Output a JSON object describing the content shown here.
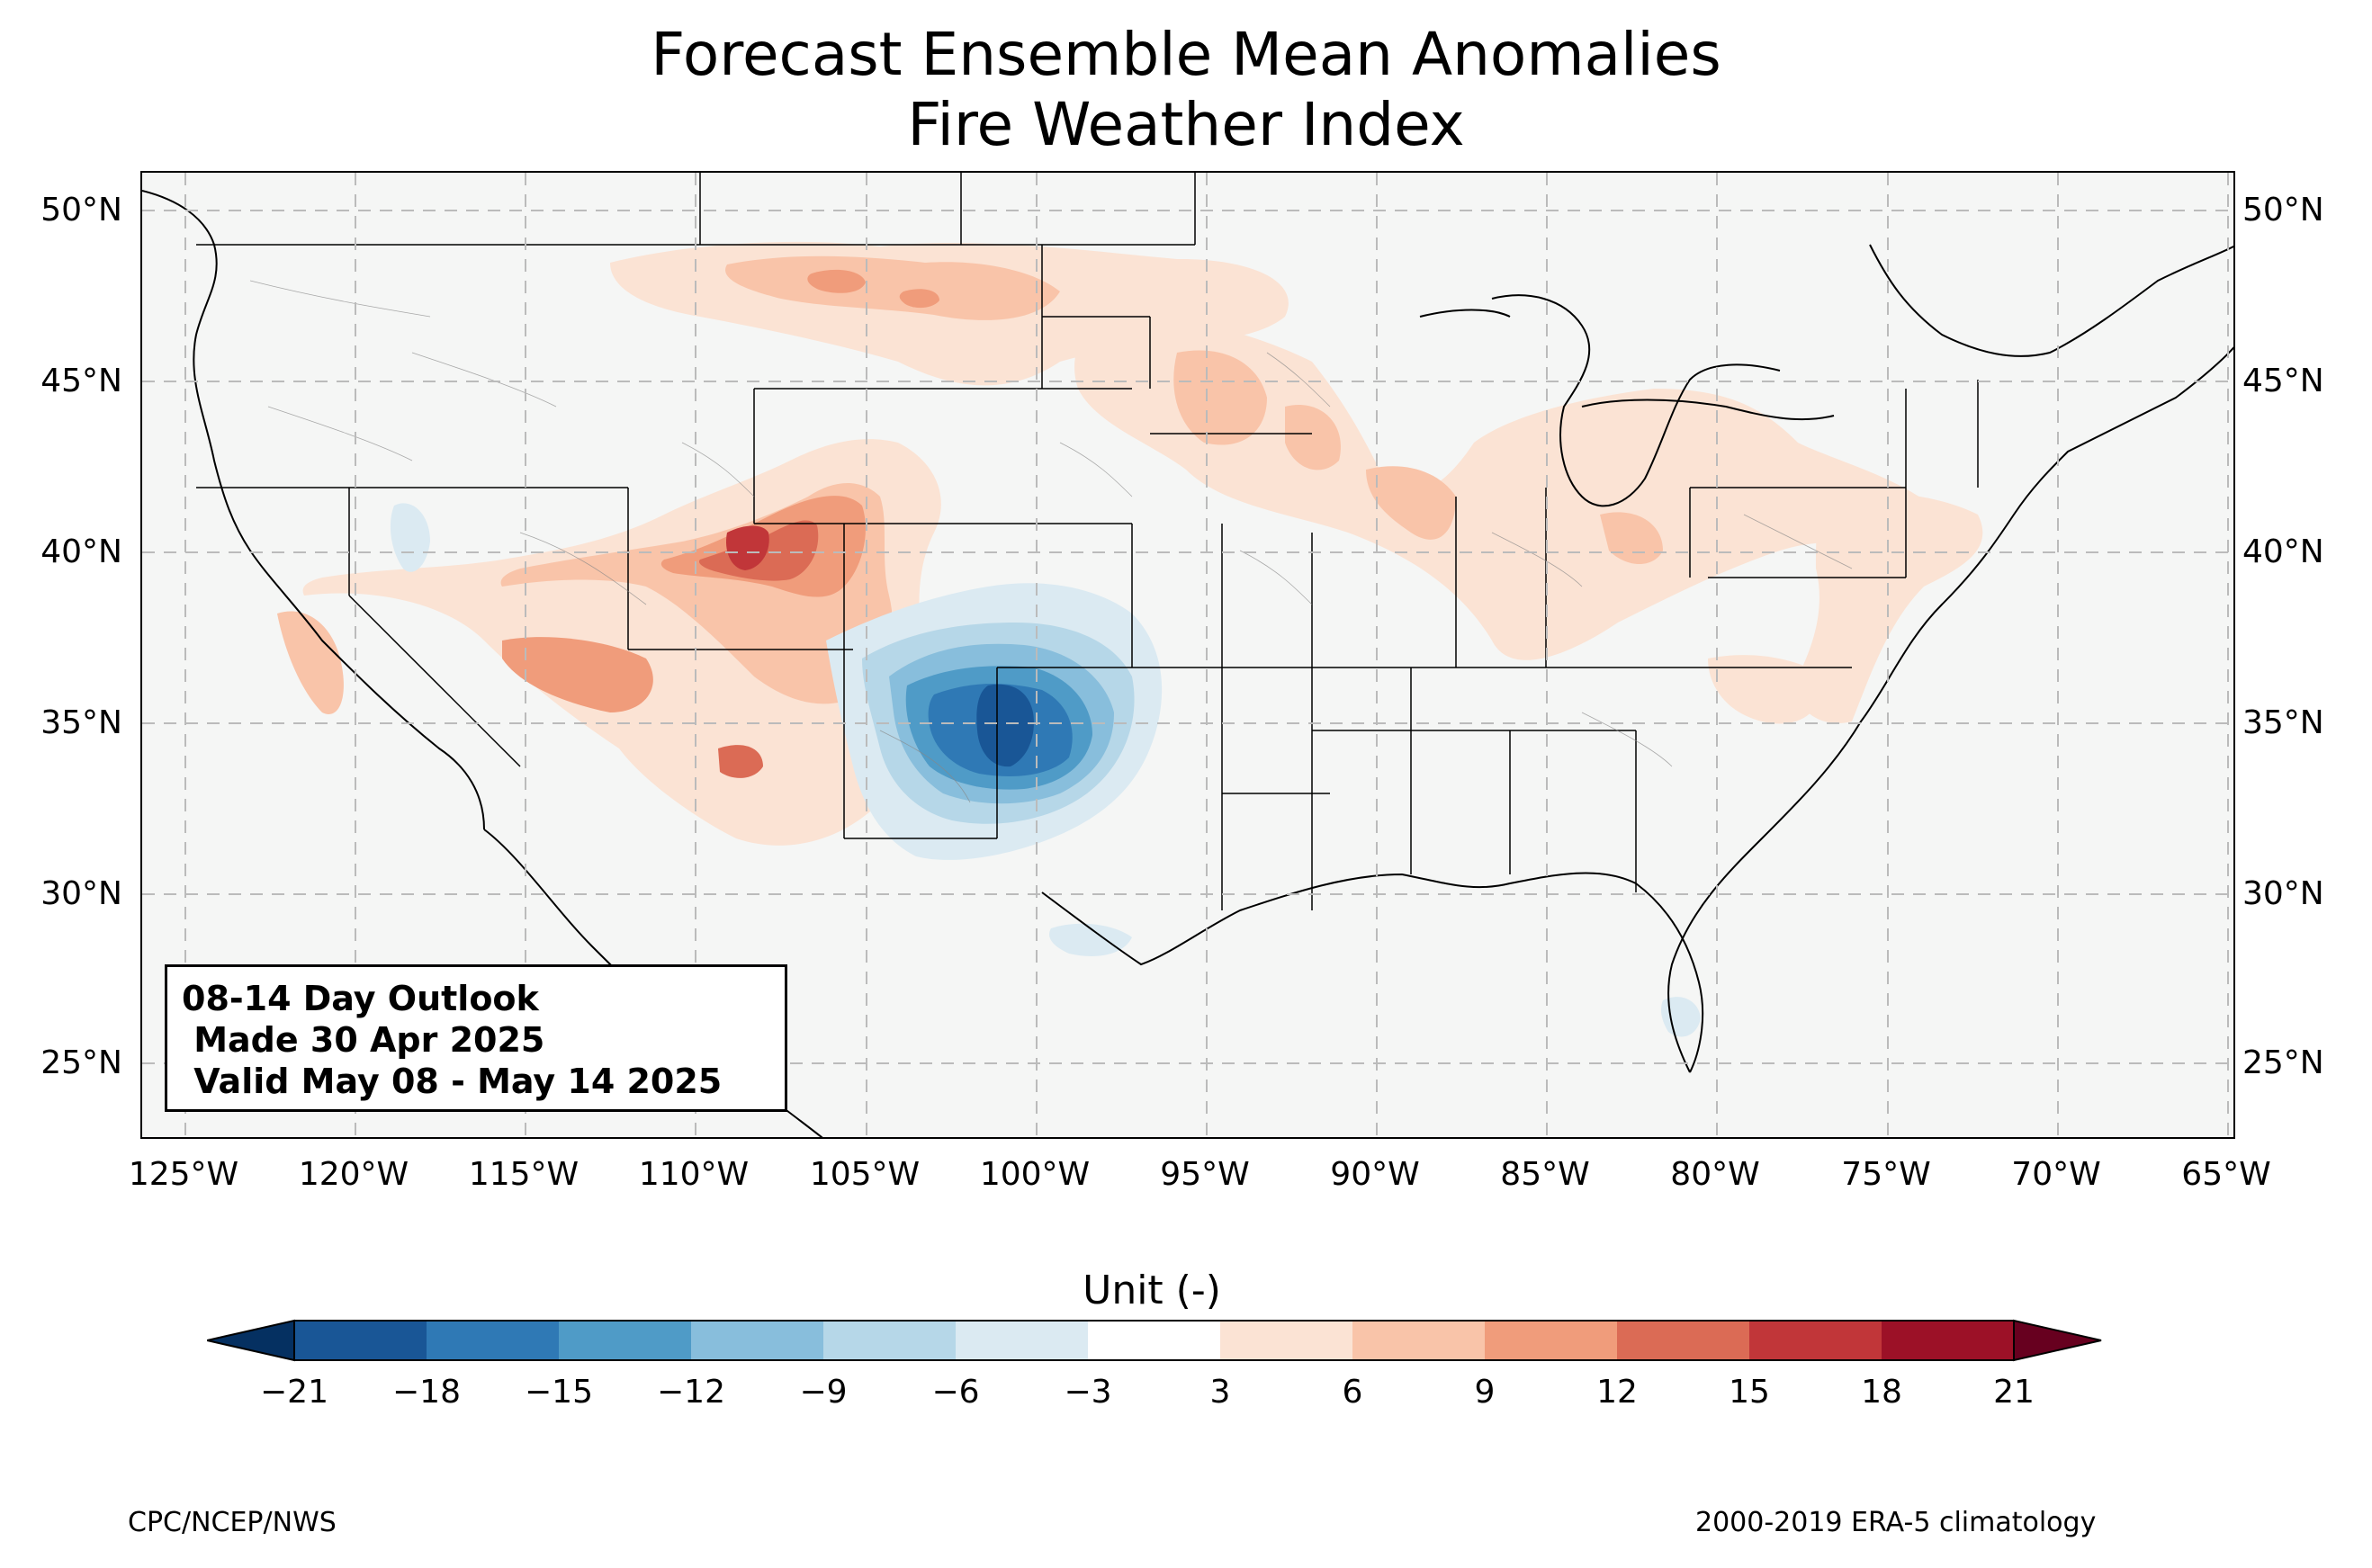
{
  "title": {
    "line1": "Forecast Ensemble Mean Anomalies",
    "line2": "Fire Weather Index"
  },
  "map": {
    "projection": "lon-lat rectangle, contiguous US",
    "lon_range": [
      -126.3,
      -64.9
    ],
    "lat_range": [
      22.7,
      51.1
    ],
    "gridlines": true,
    "lat_ticks": [
      "50°N",
      "45°N",
      "40°N",
      "35°N",
      "30°N",
      "25°N"
    ],
    "lon_ticks": [
      "125°W",
      "120°W",
      "115°W",
      "110°W",
      "105°W",
      "100°W",
      "95°W",
      "90°W",
      "85°W",
      "80°W",
      "75°W",
      "70°W",
      "65°W"
    ]
  },
  "info_box": {
    "line1": "08-14 Day Outlook",
    "line2": " Made 30 Apr 2025",
    "line3": " Valid May 08 - May 14 2025"
  },
  "colorbar": {
    "title": "Unit (-)",
    "ticks": [
      "−21",
      "−18",
      "−15",
      "−12",
      "−9",
      "−6",
      "−3",
      "3",
      "6",
      "9",
      "12",
      "15",
      "18",
      "21"
    ],
    "colors": [
      "#053061",
      "#195696",
      "#2f79b5",
      "#4f9bc7",
      "#88bedc",
      "#b6d7e8",
      "#dbeaf2",
      "#ffffff",
      "#fbe3d4",
      "#f9c4a9",
      "#f09c7b",
      "#db6b55",
      "#c13639",
      "#9c1127",
      "#67001f"
    ],
    "extend": "both"
  },
  "chart_data": {
    "type": "heatmap",
    "title": "Forecast Ensemble Mean Anomalies Fire Weather Index",
    "colorbar_label": "Unit (-)",
    "levels": [
      -21,
      -18,
      -15,
      -12,
      -9,
      -6,
      -3,
      3,
      6,
      9,
      12,
      15,
      18,
      21
    ],
    "features": [
      {
        "region": "Oklahoma/Texas panhandle",
        "anomaly_min": -18
      },
      {
        "region": "Colorado/Utah (western slope)",
        "anomaly_max": 15
      },
      {
        "region": "Arizona/New Mexico",
        "anomaly_max": 12
      },
      {
        "region": "Montana/North Dakota",
        "anomaly_max": 12
      },
      {
        "region": "Upper Midwest / Great Lakes",
        "anomaly_max": 9
      },
      {
        "region": "Mid-Atlantic / Carolinas",
        "anomaly_max": 6
      },
      {
        "region": "South Florida",
        "anomaly_min": -6
      }
    ]
  },
  "footer": {
    "left": "CPC/NCEP/NWS",
    "right": "2000-2019 ERA-5 climatology"
  }
}
